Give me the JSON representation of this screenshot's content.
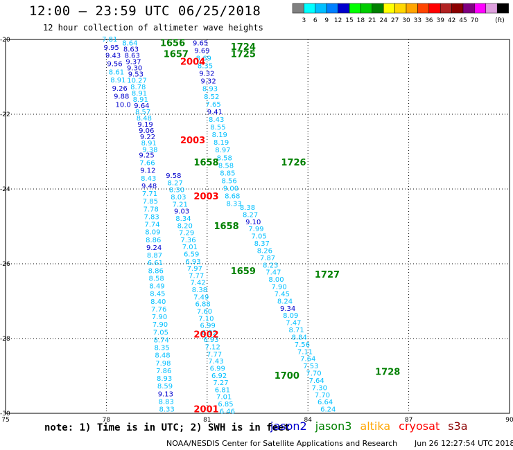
{
  "title": "12:00 – 23:59 UTC 06/25/2018",
  "subtitle": "12 hour collection of altimeter wave heights",
  "colorbar": {
    "colors": [
      "#808080",
      "#00ffff",
      "#00bfff",
      "#0080ff",
      "#0000cd",
      "#00ff00",
      "#00cd00",
      "#008000",
      "#ffff00",
      "#ffd700",
      "#ffa500",
      "#ff4500",
      "#ff0000",
      "#b22222",
      "#8b0000",
      "#800080",
      "#ff00ff",
      "#dda0dd",
      "#000000"
    ],
    "labels": [
      "3",
      "6",
      "9",
      "12",
      "15",
      "18",
      "21",
      "24",
      "27",
      "30",
      "33",
      "36",
      "39",
      "42",
      "45",
      "70"
    ],
    "unit": "(ft)"
  },
  "note": "note: 1) Time is in UTC; 2) SWH is in feet",
  "legend": [
    {
      "name": "jason2",
      "color": "#0000cd"
    },
    {
      "name": "jason3",
      "color": "#008000"
    },
    {
      "name": "altika",
      "color": "#ffa500"
    },
    {
      "name": "cryosat",
      "color": "#ff0000"
    },
    {
      "name": "s3a",
      "color": "#8b0000"
    }
  ],
  "credit": "NOAA/NESDIS Center for Satellite Applications and Research",
  "credit_timestamp": "Jun 26 12:27:54 UTC 2018",
  "chart_data": {
    "type": "scatter",
    "xlim": [
      75,
      90
    ],
    "ylim": [
      -30,
      -20
    ],
    "x_ticks": [
      75,
      78,
      81,
      84,
      87,
      90
    ],
    "y_ticks": [
      -20,
      -22,
      -24,
      -26,
      -28,
      -30
    ],
    "passes": [
      {
        "label": "1656",
        "color": "#008000",
        "lon": 79.6,
        "lat": -20.1
      },
      {
        "label": "1657",
        "color": "#008000",
        "lon": 79.7,
        "lat": -20.4
      },
      {
        "label": "2004",
        "color": "#ff0000",
        "lon": 80.2,
        "lat": -20.6
      },
      {
        "label": "1724",
        "color": "#008000",
        "lon": 81.7,
        "lat": -20.2
      },
      {
        "label": "1725",
        "color": "#008000",
        "lon": 81.7,
        "lat": -20.4
      },
      {
        "label": "2003",
        "color": "#ff0000",
        "lon": 80.2,
        "lat": -22.7
      },
      {
        "label": "1658",
        "color": "#008000",
        "lon": 80.6,
        "lat": -23.3
      },
      {
        "label": "1726",
        "color": "#008000",
        "lon": 83.2,
        "lat": -23.3
      },
      {
        "label": "2003",
        "color": "#ff0000",
        "lon": 80.6,
        "lat": -24.2
      },
      {
        "label": "1658",
        "color": "#008000",
        "lon": 81.2,
        "lat": -25.0
      },
      {
        "label": "1659",
        "color": "#008000",
        "lon": 81.7,
        "lat": -26.2
      },
      {
        "label": "1727",
        "color": "#008000",
        "lon": 84.2,
        "lat": -26.3
      },
      {
        "label": "2002",
        "color": "#ff0000",
        "lon": 80.6,
        "lat": -27.9
      },
      {
        "label": "1700",
        "color": "#008000",
        "lon": 83.0,
        "lat": -29.0
      },
      {
        "label": "1728",
        "color": "#008000",
        "lon": 86.0,
        "lat": -28.9
      },
      {
        "label": "2001",
        "color": "#ff0000",
        "lon": 80.6,
        "lat": -29.9
      }
    ],
    "tracks": [
      {
        "name": "A",
        "start": [
          78.1,
          -20.0
        ],
        "end": [
          78.5,
          -21.75
        ],
        "values": [
          "7.81",
          "9.95",
          "9.43",
          "9.56",
          "8.61",
          "8.91",
          "9.26",
          "9.88",
          "10.0"
        ],
        "colors": [
          "#00bfff",
          "#0000cd",
          "#0000cd",
          "#0000cd",
          "#00bfff",
          "#00bfff",
          "#0000cd",
          "#0000cd",
          "#0000cd"
        ]
      },
      {
        "name": "B",
        "start": [
          78.7,
          -20.1
        ],
        "end": [
          79.3,
          -22.95
        ],
        "values": [
          "8.64",
          "8.63",
          "8.63",
          "9.37",
          "9.30",
          "9.53",
          "10.27",
          "8.78",
          "8.91",
          "8.91",
          "9.64",
          "8.57",
          "8.48",
          "9.19",
          "9.06",
          "9.22",
          "8.91",
          "9.38"
        ],
        "colors": [
          "#00bfff",
          "#0000cd",
          "#0000cd",
          "#0000cd",
          "#0000cd",
          "#0000cd",
          "#00bfff",
          "#00bfff",
          "#00bfff",
          "#00bfff",
          "#0000cd",
          "#00bfff",
          "#00bfff",
          "#0000cd",
          "#0000cd",
          "#0000cd",
          "#00bfff",
          "#00bfff"
        ]
      },
      {
        "name": "C",
        "start": [
          79.2,
          -23.1
        ],
        "end": [
          79.8,
          -29.9
        ],
        "values": [
          "9.25",
          "7.66",
          "9.12",
          "8.43",
          "9.48",
          "7.71",
          "7.85",
          "7.78",
          "7.83",
          "7.74",
          "8.09",
          "8.86",
          "9.24",
          "8.87",
          "6.61",
          "8.86",
          "8.58",
          "8.49",
          "8.45",
          "8.40",
          "7.76",
          "7.90",
          "7.90",
          "7.05",
          "8.74",
          "8.35",
          "8.48",
          "7.98",
          "7.86",
          "8.93",
          "8.59",
          "9.13",
          "8.83",
          "8.33"
        ],
        "colors": [
          "#0000cd",
          "#00bfff",
          "#0000cd",
          "#00bfff",
          "#0000cd",
          "#00bfff",
          "#00bfff",
          "#00bfff",
          "#00bfff",
          "#00bfff",
          "#00bfff",
          "#00bfff",
          "#0000cd",
          "#00bfff",
          "#00bfff",
          "#00bfff",
          "#00bfff",
          "#00bfff",
          "#00bfff",
          "#00bfff",
          "#00bfff",
          "#00bfff",
          "#00bfff",
          "#00bfff",
          "#00bfff",
          "#00bfff",
          "#00bfff",
          "#00bfff",
          "#00bfff",
          "#00bfff",
          "#00bfff",
          "#0000cd",
          "#00bfff",
          "#00bfff"
        ]
      },
      {
        "name": "D",
        "start": [
          80.0,
          -23.65
        ],
        "end": [
          81.6,
          -29.95
        ],
        "values": [
          "9.58",
          "8.27",
          "8.30",
          "8.03",
          "7.21",
          "9.03",
          "8.34",
          "8.20",
          "7.29",
          "7.36",
          "7.01",
          "6.59",
          "6.93",
          "7.97",
          "7.77",
          "7.42",
          "8.38",
          "7.49",
          "6.88",
          "7.60",
          "7.10",
          "6.99",
          "6.92",
          "6.93",
          "7.12",
          "7.77",
          "7.43",
          "6.99",
          "6.92",
          "7.27",
          "6.81",
          "7.01",
          "6.85",
          "6.46"
        ],
        "colors": [
          "#0000cd",
          "#00bfff",
          "#00bfff",
          "#00bfff",
          "#00bfff",
          "#0000cd",
          "#00bfff",
          "#00bfff",
          "#00bfff",
          "#00bfff",
          "#00bfff",
          "#00bfff",
          "#00bfff",
          "#00bfff",
          "#00bfff",
          "#00bfff",
          "#00bfff",
          "#00bfff",
          "#00bfff",
          "#00bfff",
          "#00bfff",
          "#00bfff",
          "#00bfff",
          "#00bfff",
          "#00bfff",
          "#00bfff",
          "#00bfff",
          "#00bfff",
          "#00bfff",
          "#00bfff",
          "#00bfff",
          "#00bfff",
          "#00bfff",
          "#00bfff"
        ]
      },
      {
        "name": "E",
        "start": [
          80.8,
          -20.1
        ],
        "end": [
          81.8,
          -24.4
        ],
        "values": [
          "9.65",
          "9.69",
          "8.69",
          "8.35",
          "9.32",
          "9.32",
          "8.93",
          "8.52",
          "7.65",
          "9.41",
          "8.43",
          "8.55",
          "8.19",
          "8.19",
          "8.97",
          "8.58",
          "8.58",
          "8.85",
          "8.56",
          "9.00",
          "8.68",
          "8.33"
        ],
        "colors": [
          "#0000cd",
          "#0000cd",
          "#00bfff",
          "#00bfff",
          "#0000cd",
          "#0000cd",
          "#00bfff",
          "#00bfff",
          "#00bfff",
          "#0000cd",
          "#00bfff",
          "#00bfff",
          "#00bfff",
          "#00bfff",
          "#00bfff",
          "#00bfff",
          "#00bfff",
          "#00bfff",
          "#00bfff",
          "#00bfff",
          "#00bfff",
          "#00bfff"
        ]
      },
      {
        "name": "F",
        "start": [
          82.2,
          -24.5
        ],
        "end": [
          84.6,
          -29.9
        ],
        "values": [
          "8.38",
          "8.27",
          "9.10",
          "7.99",
          "7.05",
          "8.37",
          "8.26",
          "7.87",
          "8.23",
          "7.47",
          "8.00",
          "7.90",
          "7.45",
          "8.24",
          "9.34",
          "8.09",
          "7.47",
          "8.71",
          "8.84",
          "7.56",
          "7.11",
          "7.64",
          "7.53",
          "7.70",
          "7.64",
          "7.30",
          "7.70",
          "6.64",
          "6.24"
        ],
        "colors": [
          "#00bfff",
          "#00bfff",
          "#0000cd",
          "#00bfff",
          "#00bfff",
          "#00bfff",
          "#00bfff",
          "#00bfff",
          "#00bfff",
          "#00bfff",
          "#00bfff",
          "#00bfff",
          "#00bfff",
          "#00bfff",
          "#0000cd",
          "#00bfff",
          "#00bfff",
          "#00bfff",
          "#00bfff",
          "#00bfff",
          "#00bfff",
          "#00bfff",
          "#00bfff",
          "#00bfff",
          "#00bfff",
          "#00bfff",
          "#00bfff",
          "#00bfff",
          "#00bfff"
        ]
      }
    ]
  }
}
